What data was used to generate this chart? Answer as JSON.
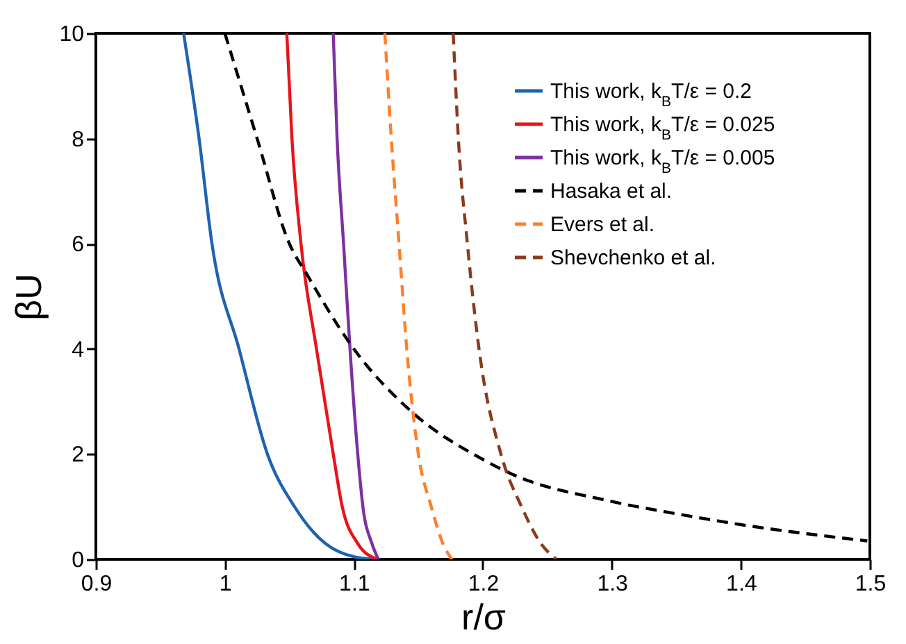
{
  "chart_data": {
    "type": "line",
    "xlabel": "r/σ",
    "ylabel": "βU",
    "xlim": [
      0.9,
      1.5
    ],
    "ylim": [
      0,
      10
    ],
    "xticks": [
      0.9,
      1,
      1.1,
      1.2,
      1.3,
      1.4,
      1.5
    ],
    "yticks": [
      0,
      2,
      4,
      6,
      8,
      10
    ],
    "grid": false,
    "legend": "top right",
    "series": [
      {
        "name": "This work, k$_{B}$T/ε = 0.2",
        "color": "#1f63b0",
        "line_style": "solid",
        "x": [
          0.968,
          0.98,
          0.99,
          1.011,
          1.033,
          1.054,
          1.078,
          1.107,
          1.12
        ],
        "values": [
          10,
          8,
          6,
          4,
          2,
          1,
          0.3,
          0.02,
          0
        ]
      },
      {
        "name": "This work, k$_{B}$T/ε = 0.025",
        "color": "#e8141c",
        "line_style": "solid",
        "x": [
          1.048,
          1.052,
          1.059,
          1.071,
          1.084,
          1.091,
          1.103,
          1.118
        ],
        "values": [
          10,
          8,
          6,
          4,
          2,
          1,
          0.3,
          0
        ]
      },
      {
        "name": "This work, k$_{B}$T/ε = 0.005",
        "color": "#7e30a0",
        "line_style": "solid",
        "x": [
          1.084,
          1.087,
          1.092,
          1.097,
          1.103,
          1.107,
          1.114,
          1.119
        ],
        "values": [
          10,
          8,
          6,
          4,
          2,
          1,
          0.3,
          0
        ]
      },
      {
        "name": "Hasaka et al.",
        "color": "#000000",
        "line_style": "dashed",
        "x": [
          1.0,
          1.025,
          1.05,
          1.064,
          1.1,
          1.145,
          1.2,
          1.218,
          1.3,
          1.347,
          1.4,
          1.498
        ],
        "values": [
          10,
          8,
          6,
          5.4,
          4,
          2.8,
          1.9,
          1.67,
          1.1,
          0.88,
          0.66,
          0.35
        ]
      },
      {
        "name": "Evers et al.",
        "color": "#ff7f27",
        "line_style": "dashed",
        "x": [
          1.124,
          1.129,
          1.135,
          1.141,
          1.15,
          1.16,
          1.169,
          1.176
        ],
        "values": [
          10,
          8,
          6,
          4,
          2,
          1,
          0.3,
          0
        ]
      },
      {
        "name": "Shevchenko et al.",
        "color": "#8b3a1a",
        "line_style": "dashed",
        "x": [
          1.177,
          1.181,
          1.188,
          1.197,
          1.214,
          1.23,
          1.245,
          1.257
        ],
        "values": [
          10,
          8,
          6,
          4,
          2,
          1,
          0.3,
          0
        ]
      }
    ]
  }
}
